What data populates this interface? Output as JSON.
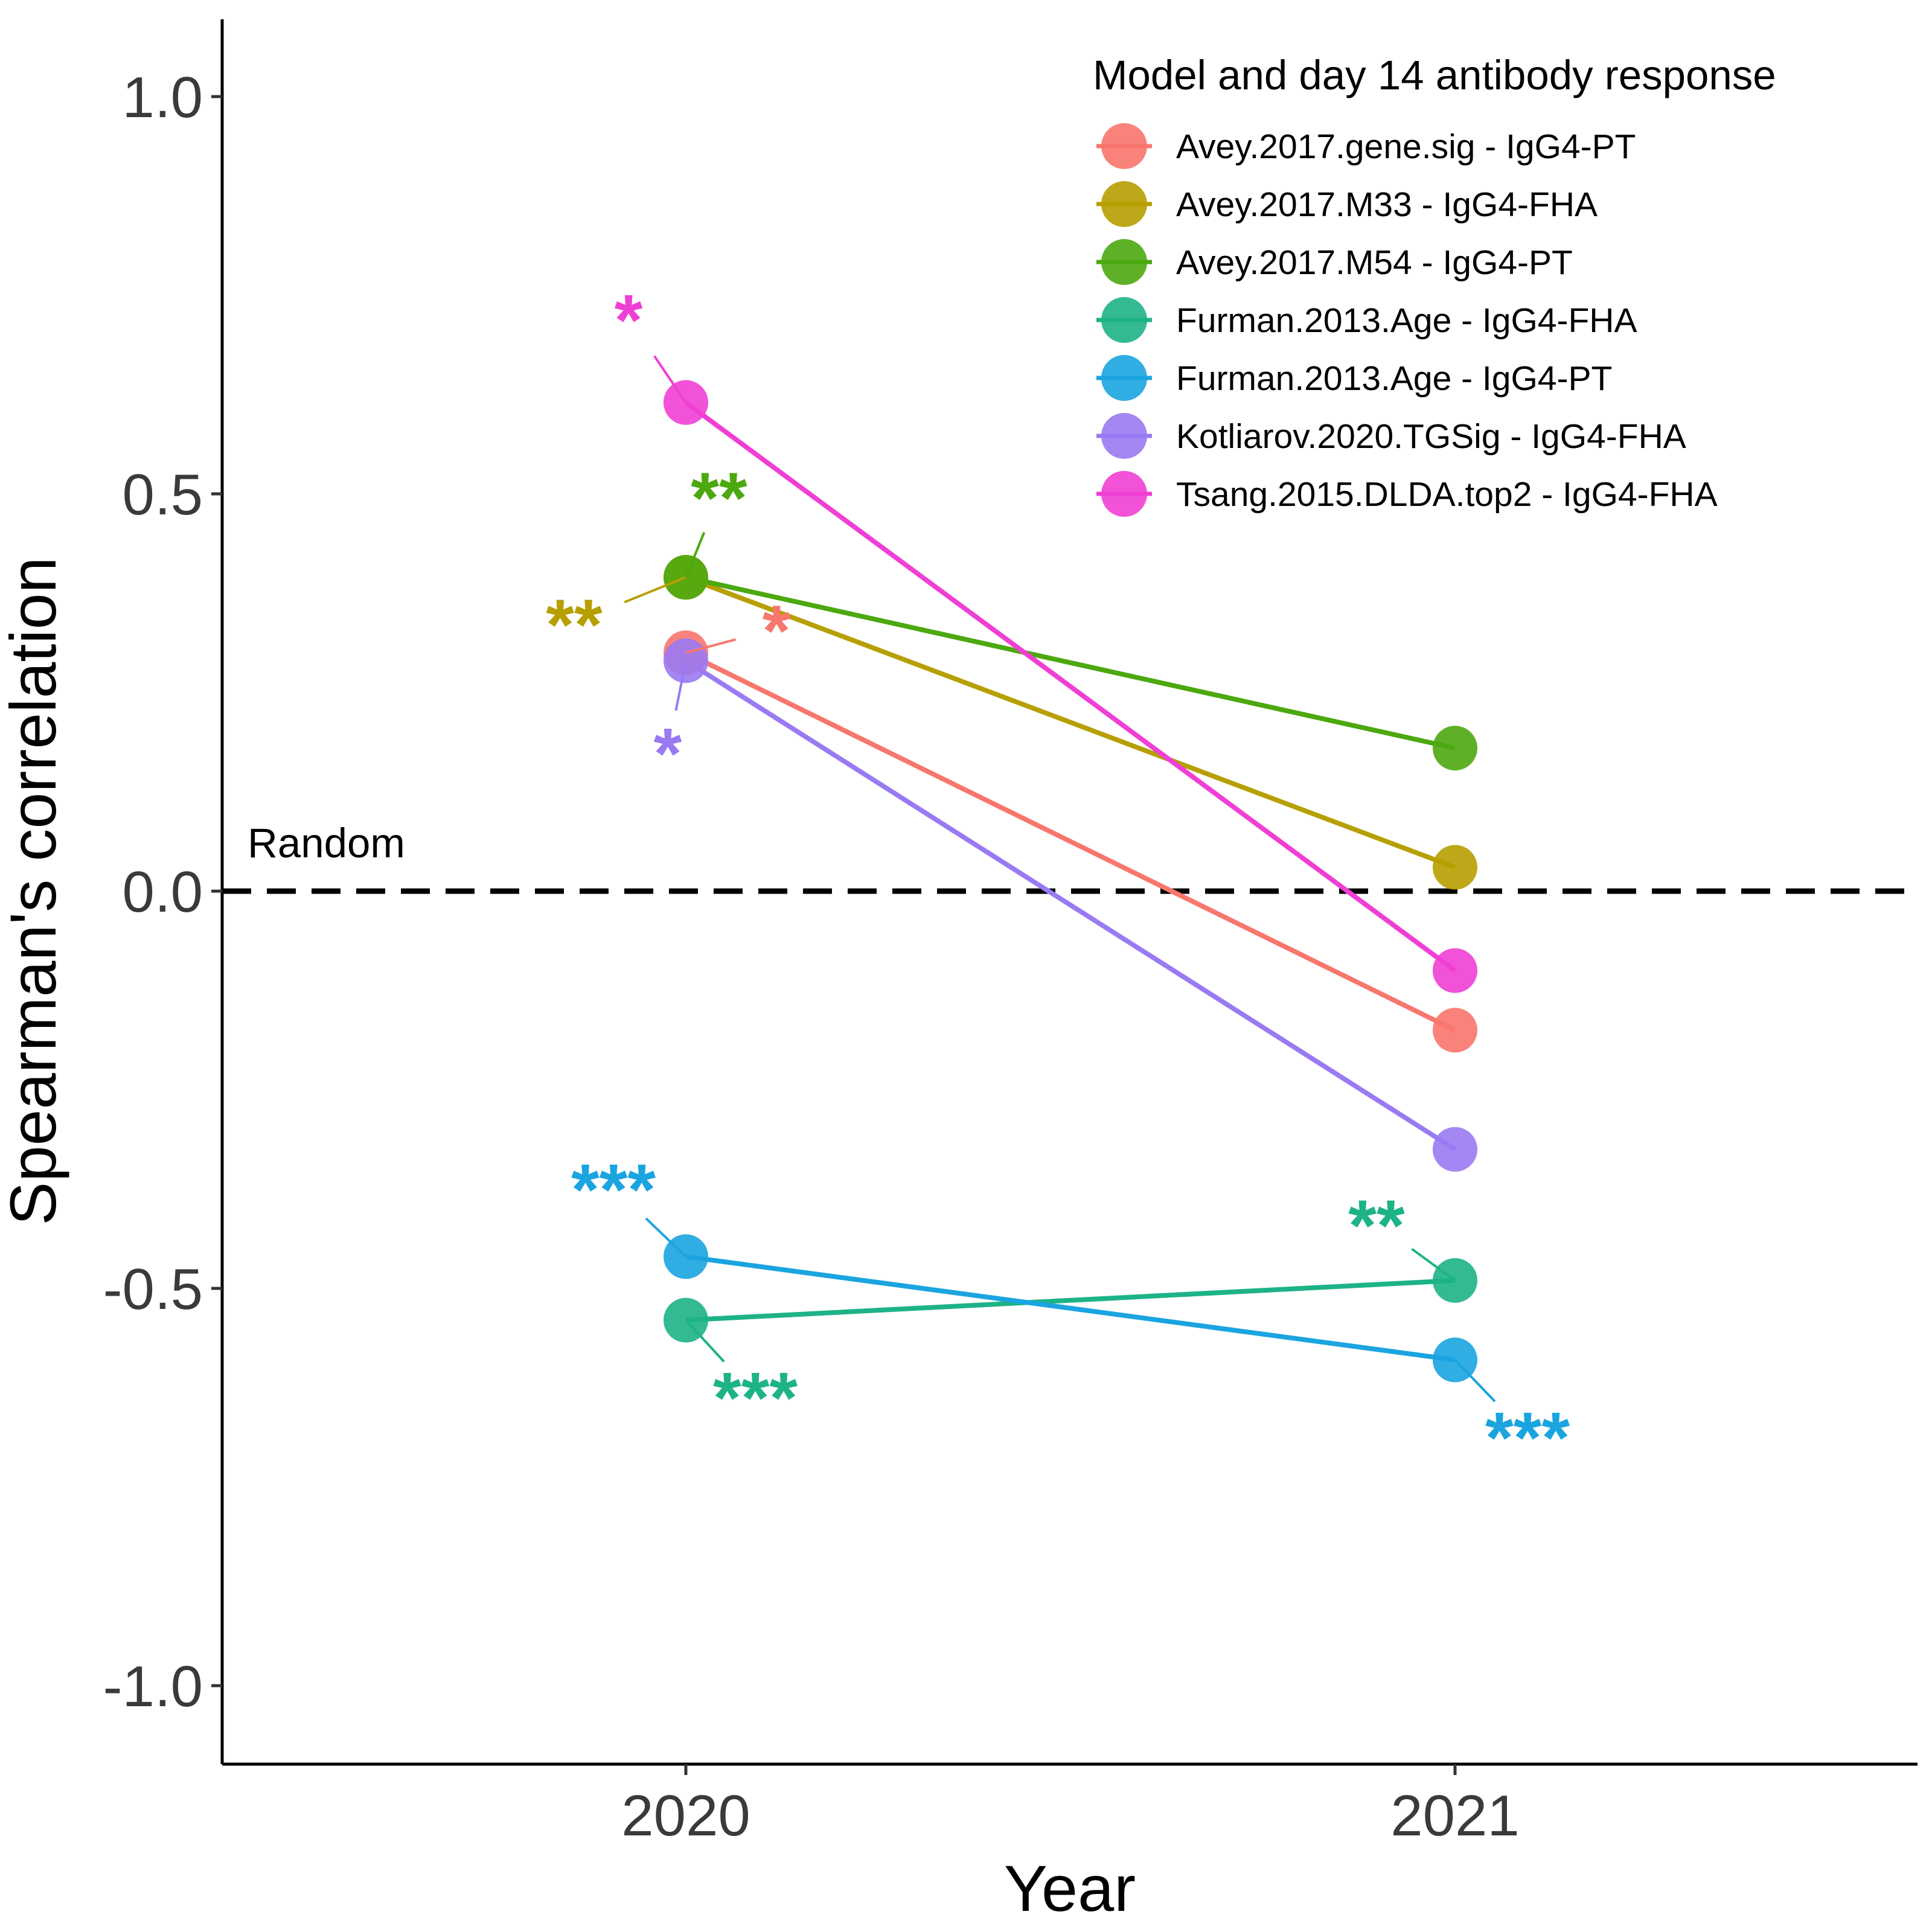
{
  "chart_data": {
    "type": "line",
    "xlabel": "Year",
    "ylabel": "Spearman's correlation",
    "x_categories": [
      "2020",
      "2021"
    ],
    "ylim": [
      -1.1,
      1.1
    ],
    "yticks": [
      "-1.0",
      "-0.5",
      "0.0",
      "0.5",
      "1.0"
    ],
    "ytick_values": [
      -1.0,
      -0.5,
      0.0,
      0.5,
      1.0
    ],
    "grid": false,
    "reference_line": {
      "y": 0.0,
      "style": "dashed",
      "label": "Random"
    },
    "legend": {
      "title": "Model and day 14 antibody response",
      "position": "top-right"
    },
    "series": [
      {
        "name": "Avey.2017.gene.sig - IgG4-PT",
        "color": "#F8766D",
        "values": [
          0.3,
          -0.175
        ],
        "significance": [
          "*",
          ""
        ]
      },
      {
        "name": "Avey.2017.M33 - IgG4-FHA",
        "color": "#B79F00",
        "values": [
          0.395,
          0.03
        ],
        "significance": [
          "**",
          ""
        ]
      },
      {
        "name": "Avey.2017.M54 - IgG4-PT",
        "color": "#4CA80F",
        "values": [
          0.395,
          0.18
        ],
        "significance": [
          "**",
          ""
        ]
      },
      {
        "name": "Furman.2013.Age - IgG4-FHA",
        "color": "#1DB387",
        "values": [
          -0.54,
          -0.49
        ],
        "significance": [
          "***",
          "**"
        ]
      },
      {
        "name": "Furman.2013.Age - IgG4-PT",
        "color": "#1AA4E0",
        "values": [
          -0.46,
          -0.59
        ],
        "significance": [
          "***",
          "***"
        ]
      },
      {
        "name": "Kotliarov.2020.TGSig - IgG4-FHA",
        "color": "#9A7AF2",
        "values": [
          0.29,
          -0.325
        ],
        "significance": [
          "*",
          ""
        ]
      },
      {
        "name": "Tsang.2015.DLDA.top2 - IgG4-FHA",
        "color": "#F03FD4",
        "values": [
          0.615,
          -0.1
        ],
        "significance": [
          "*",
          ""
        ]
      }
    ]
  }
}
